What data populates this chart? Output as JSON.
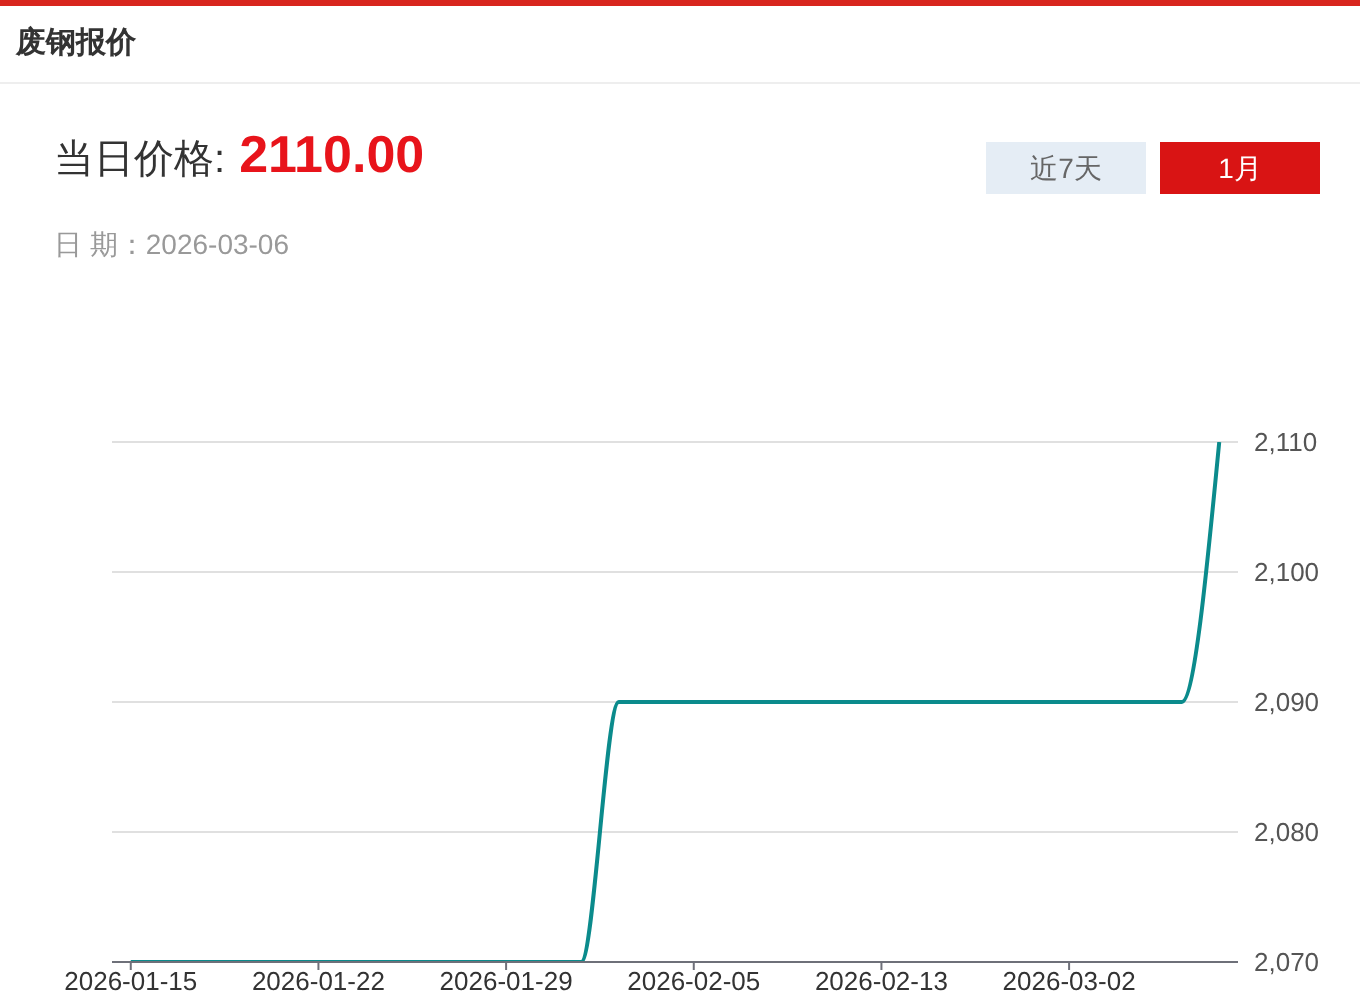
{
  "chart_data": {
    "type": "line",
    "title": "废钢报价",
    "annotations": [
      "当日价格:",
      "2110.00",
      "日 期：2026-03-06",
      "近7天",
      "1月"
    ],
    "categories": [
      "2026-01-15",
      null,
      null,
      null,
      null,
      "2026-01-22",
      null,
      null,
      null,
      null,
      "2026-01-29",
      null,
      null,
      null,
      null,
      "2026-02-05",
      null,
      null,
      null,
      null,
      "2026-02-13",
      null,
      null,
      null,
      null,
      "2026-03-02",
      null,
      null,
      null,
      null
    ],
    "series": [
      {
        "color": "#0b8b8c",
        "values": [
          2070,
          2070,
          2070,
          2070,
          2070,
          2070,
          2070,
          2070,
          2070,
          2070,
          2070,
          2070,
          2070,
          2090,
          2090,
          2090,
          2090,
          2090,
          2090,
          2090,
          2090,
          2090,
          2090,
          2090,
          2090,
          2090,
          2090,
          2090,
          2090,
          2110
        ]
      }
    ],
    "ylim": [
      2070,
      2110
    ],
    "yticks": [
      {
        "value": 2070,
        "label": "2,070"
      },
      {
        "value": 2080,
        "label": "2,080"
      },
      {
        "value": 2090,
        "label": "2,090"
      },
      {
        "value": 2100,
        "label": "2,100"
      },
      {
        "value": 2110,
        "label": "2,110"
      }
    ],
    "grid": "y",
    "marker": "none",
    "line_style": "solid"
  }
}
